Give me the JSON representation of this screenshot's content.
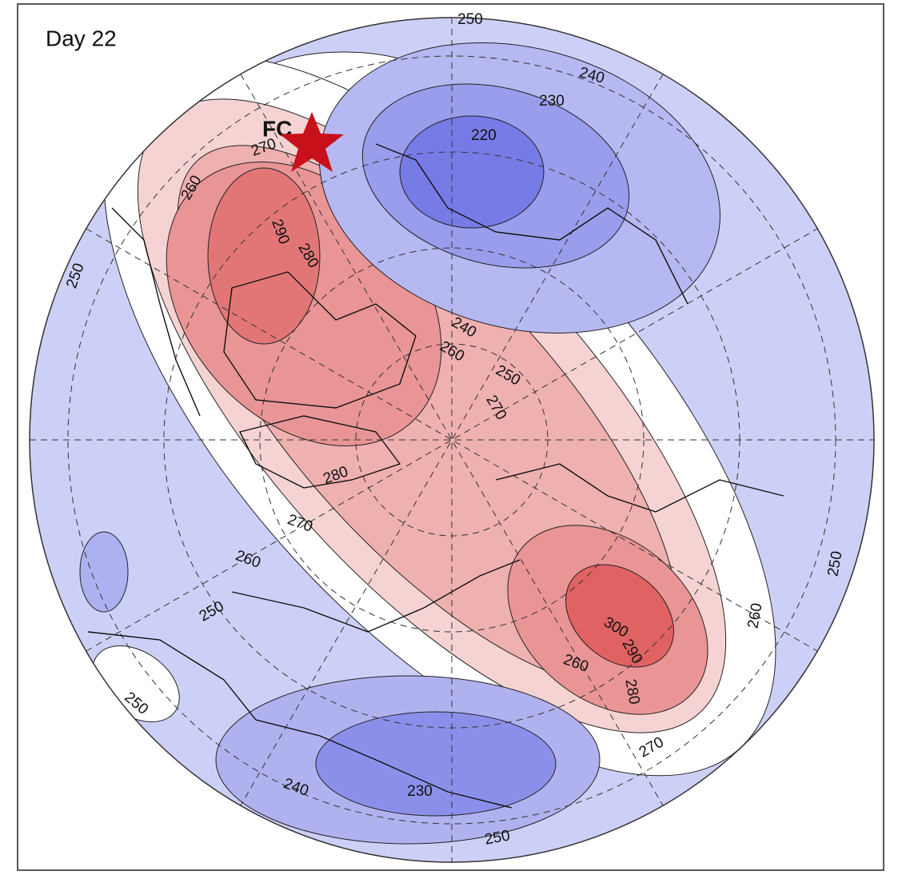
{
  "title": "Day 22",
  "marker_label": "FC",
  "contour_labels": [
    250,
    240,
    230,
    220,
    270,
    260,
    290,
    280,
    250,
    240,
    260,
    250,
    270,
    280,
    270,
    260,
    250,
    300,
    290,
    280,
    260,
    260,
    250,
    250,
    270,
    230,
    240,
    250
  ]
}
